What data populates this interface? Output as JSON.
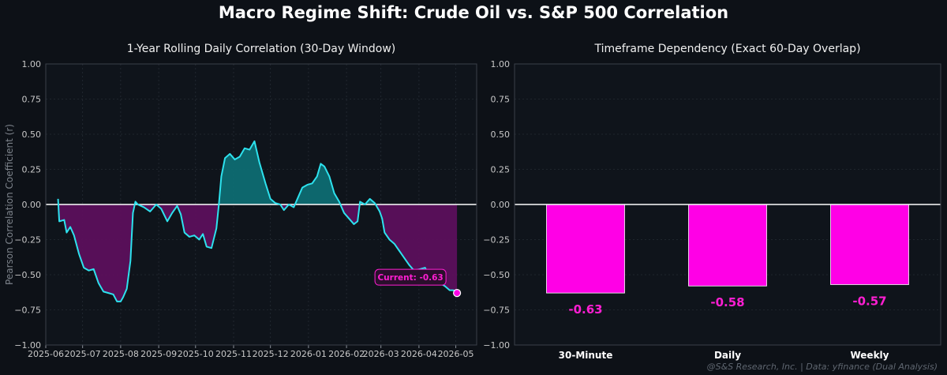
{
  "title": "Macro Regime Shift: Crude Oil vs. S&P 500 Correlation",
  "watermark": "@S&S Research, Inc. | Data: yfinance (Dual Analysis)",
  "colors": {
    "background": "#0d1117",
    "line": "#2de2ee",
    "positive_fill": "#0e6c72",
    "negative_fill": "#5c0f5c",
    "bar": "#ff00e6",
    "accent": "#ff1ed2"
  },
  "chart_data": [
    {
      "type": "area",
      "title": "1-Year Rolling Daily Correlation (30-Day Window)",
      "ylabel": "Pearson Correlation Coefficient (r)",
      "xlabel": "",
      "xlim": [
        "2025-06-01",
        "2026-05-18"
      ],
      "ylim": [
        -1.0,
        1.0
      ],
      "grid": true,
      "x_ticks": [
        "2025-06",
        "2025-07",
        "2025-08",
        "2025-09",
        "2025-10",
        "2025-11",
        "2025-12",
        "2026-01",
        "2026-02",
        "2026-03",
        "2026-04",
        "2026-05"
      ],
      "y_ticks": [
        1.0,
        0.75,
        0.5,
        0.25,
        0.0,
        -0.25,
        -0.5,
        -0.75,
        -1.0
      ],
      "y_tick_labels": [
        "1.00",
        "0.75",
        "0.50",
        "0.25",
        "0.00",
        "−0.25",
        "−0.50",
        "−0.75",
        "−1.00"
      ],
      "series": [
        {
          "points": [
            [
              "2025-06-11",
              0.04
            ],
            [
              "2025-06-12",
              -0.12
            ],
            [
              "2025-06-16",
              -0.11
            ],
            [
              "2025-06-18",
              -0.2
            ],
            [
              "2025-06-21",
              -0.16
            ],
            [
              "2025-06-24",
              -0.22
            ],
            [
              "2025-06-28",
              -0.35
            ],
            [
              "2025-07-02",
              -0.45
            ],
            [
              "2025-07-06",
              -0.47
            ],
            [
              "2025-07-10",
              -0.46
            ],
            [
              "2025-07-14",
              -0.56
            ],
            [
              "2025-07-18",
              -0.62
            ],
            [
              "2025-07-22",
              -0.63
            ],
            [
              "2025-07-26",
              -0.64
            ],
            [
              "2025-07-29",
              -0.69
            ],
            [
              "2025-08-01",
              -0.69
            ],
            [
              "2025-08-03",
              -0.66
            ],
            [
              "2025-08-06",
              -0.6
            ],
            [
              "2025-08-09",
              -0.4
            ],
            [
              "2025-08-11",
              -0.06
            ],
            [
              "2025-08-13",
              0.02
            ],
            [
              "2025-08-15",
              0.0
            ],
            [
              "2025-08-20",
              -0.02
            ],
            [
              "2025-08-25",
              -0.05
            ],
            [
              "2025-08-30",
              0.0
            ],
            [
              "2025-09-03",
              -0.03
            ],
            [
              "2025-09-08",
              -0.12
            ],
            [
              "2025-09-12",
              -0.06
            ],
            [
              "2025-09-16",
              -0.01
            ],
            [
              "2025-09-19",
              -0.07
            ],
            [
              "2025-09-22",
              -0.2
            ],
            [
              "2025-09-26",
              -0.23
            ],
            [
              "2025-09-30",
              -0.22
            ],
            [
              "2025-10-04",
              -0.25
            ],
            [
              "2025-10-07",
              -0.21
            ],
            [
              "2025-10-10",
              -0.3
            ],
            [
              "2025-10-14",
              -0.31
            ],
            [
              "2025-10-18",
              -0.17
            ],
            [
              "2025-10-20",
              0.0
            ],
            [
              "2025-10-22",
              0.2
            ],
            [
              "2025-10-25",
              0.33
            ],
            [
              "2025-10-29",
              0.36
            ],
            [
              "2025-11-02",
              0.32
            ],
            [
              "2025-11-06",
              0.34
            ],
            [
              "2025-11-10",
              0.4
            ],
            [
              "2025-11-14",
              0.39
            ],
            [
              "2025-11-18",
              0.45
            ],
            [
              "2025-11-22",
              0.3
            ],
            [
              "2025-11-27",
              0.15
            ],
            [
              "2025-12-01",
              0.04
            ],
            [
              "2025-12-05",
              0.01
            ],
            [
              "2025-12-09",
              0.0
            ],
            [
              "2025-12-12",
              -0.04
            ],
            [
              "2025-12-16",
              0.0
            ],
            [
              "2025-12-20",
              -0.02
            ],
            [
              "2025-12-24",
              0.06
            ],
            [
              "2025-12-27",
              0.12
            ],
            [
              "2025-12-31",
              0.14
            ],
            [
              "2026-01-04",
              0.15
            ],
            [
              "2026-01-08",
              0.2
            ],
            [
              "2026-01-11",
              0.29
            ],
            [
              "2026-01-14",
              0.27
            ],
            [
              "2026-01-18",
              0.2
            ],
            [
              "2026-01-22",
              0.08
            ],
            [
              "2026-01-26",
              0.02
            ],
            [
              "2026-01-30",
              -0.06
            ],
            [
              "2026-02-03",
              -0.1
            ],
            [
              "2026-02-07",
              -0.14
            ],
            [
              "2026-02-10",
              -0.12
            ],
            [
              "2026-02-12",
              0.02
            ],
            [
              "2026-02-16",
              0.0
            ],
            [
              "2026-02-20",
              0.04
            ],
            [
              "2026-02-24",
              0.01
            ],
            [
              "2026-02-28",
              -0.05
            ],
            [
              "2026-03-02",
              -0.1
            ],
            [
              "2026-03-04",
              -0.2
            ],
            [
              "2026-03-08",
              -0.25
            ],
            [
              "2026-03-12",
              -0.28
            ],
            [
              "2026-03-16",
              -0.33
            ],
            [
              "2026-03-20",
              -0.38
            ],
            [
              "2026-03-24",
              -0.43
            ],
            [
              "2026-03-28",
              -0.47
            ],
            [
              "2026-04-02",
              -0.46
            ],
            [
              "2026-04-06",
              -0.45
            ],
            [
              "2026-04-10",
              -0.52
            ],
            [
              "2026-04-14",
              -0.55
            ],
            [
              "2026-04-18",
              -0.56
            ],
            [
              "2026-04-22",
              -0.58
            ],
            [
              "2026-04-26",
              -0.61
            ],
            [
              "2026-04-29",
              -0.61
            ],
            [
              "2026-05-02",
              -0.63
            ]
          ]
        }
      ],
      "annotation": {
        "text": "Current: -0.63",
        "x": "2026-05-02",
        "y": -0.63
      }
    },
    {
      "type": "bar",
      "title": "Timeframe Dependency (Exact 60-Day Overlap)",
      "ylabel": "",
      "xlabel": "",
      "ylim": [
        -1.0,
        1.0
      ],
      "grid": true,
      "y_ticks": [
        1.0,
        0.75,
        0.5,
        0.25,
        0.0,
        -0.25,
        -0.5,
        -0.75,
        -1.0
      ],
      "y_tick_labels": [
        "1.00",
        "0.75",
        "0.50",
        "0.25",
        "0.00",
        "−0.25",
        "−0.50",
        "−0.75",
        "−1.00"
      ],
      "categories": [
        "30-Minute",
        "Daily",
        "Weekly"
      ],
      "values": [
        -0.63,
        -0.58,
        -0.57
      ],
      "value_labels": [
        "-0.63",
        "-0.58",
        "-0.57"
      ]
    }
  ]
}
